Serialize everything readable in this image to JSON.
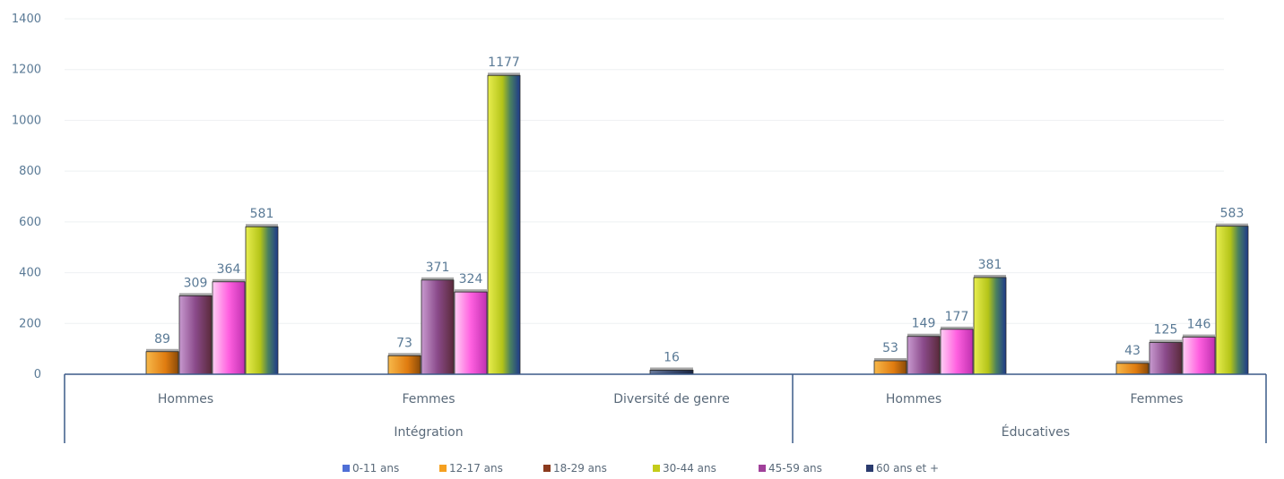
{
  "chart_data": {
    "type": "bar",
    "ylim": [
      0,
      1400
    ],
    "yticks": [
      0,
      200,
      400,
      600,
      800,
      1000,
      1200,
      1400
    ],
    "grid": true,
    "legend_position": "bottom",
    "groups": [
      {
        "label": "Intégration",
        "categories": [
          "Hommes",
          "Femmes",
          "Diversité de genre"
        ]
      },
      {
        "label": "Éducatives",
        "categories": [
          "Hommes",
          "Femmes"
        ]
      }
    ],
    "series": [
      {
        "name": "0-11 ans",
        "color": "#4f6fd6",
        "values": [
          0,
          0,
          0,
          0,
          0
        ]
      },
      {
        "name": "12-17 ans",
        "color": "#f5a020",
        "values": [
          89,
          73,
          0,
          53,
          43
        ]
      },
      {
        "name": "18-29 ans",
        "color": "#8b3a1e",
        "values": [
          309,
          371,
          0,
          149,
          125
        ]
      },
      {
        "name": "30-44 ans",
        "color": "#c4cc1a",
        "values": [
          581,
          1177,
          0,
          381,
          583
        ]
      },
      {
        "name": "45-59 ans",
        "color": "#a0409a",
        "values": [
          364,
          324,
          0,
          177,
          146
        ]
      },
      {
        "name": "60 ans et +",
        "color": "#2a3b6e",
        "values": [
          0,
          0,
          16,
          0,
          0
        ]
      }
    ],
    "bars": [
      [
        {
          "s": 1,
          "v": 89
        },
        {
          "s": 2,
          "v": 309
        },
        {
          "s": 4,
          "v": 364
        },
        {
          "s": 3,
          "v": 581
        }
      ],
      [
        {
          "s": 1,
          "v": 73
        },
        {
          "s": 2,
          "v": 371
        },
        {
          "s": 4,
          "v": 324
        },
        {
          "s": 3,
          "v": 1177
        }
      ],
      [
        {
          "s": 5,
          "v": 16
        }
      ],
      [
        {
          "s": 1,
          "v": 53
        },
        {
          "s": 2,
          "v": 149
        },
        {
          "s": 4,
          "v": 177
        },
        {
          "s": 3,
          "v": 381
        }
      ],
      [
        {
          "s": 1,
          "v": 43
        },
        {
          "s": 2,
          "v": 125
        },
        {
          "s": 4,
          "v": 146
        },
        {
          "s": 3,
          "v": 583
        }
      ]
    ]
  }
}
